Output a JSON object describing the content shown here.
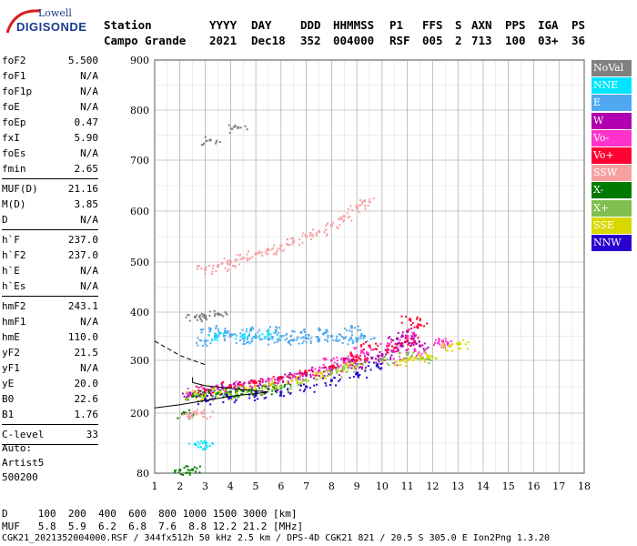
{
  "logo": {
    "line1": "Lowell",
    "line2": "DIGISONDE"
  },
  "header": {
    "row1": [
      {
        "label": "Station",
        "x": 114
      },
      {
        "label": "YYYY",
        "x": 230
      },
      {
        "label": "DAY",
        "x": 276
      },
      {
        "label": "DDD",
        "x": 330
      },
      {
        "label": "HHMMSS",
        "x": 366
      },
      {
        "label": "P1",
        "x": 428
      },
      {
        "label": "FFS",
        "x": 464
      },
      {
        "label": "S",
        "x": 500
      },
      {
        "label": "AXN",
        "x": 518
      },
      {
        "label": "PPS",
        "x": 555
      },
      {
        "label": "IGA",
        "x": 591
      },
      {
        "label": "PS",
        "x": 628
      }
    ],
    "row2": [
      {
        "label": "Campo Grande",
        "x": 114
      },
      {
        "label": "2021",
        "x": 230
      },
      {
        "label": "Dec18",
        "x": 276
      },
      {
        "label": "352",
        "x": 330
      },
      {
        "label": "004000",
        "x": 366
      },
      {
        "label": "RSF",
        "x": 428
      },
      {
        "label": "005",
        "x": 464
      },
      {
        "label": "2",
        "x": 500
      },
      {
        "label": "713",
        "x": 518
      },
      {
        "label": "100",
        "x": 555
      },
      {
        "label": "03+",
        "x": 591
      },
      {
        "label": "36",
        "x": 628
      }
    ]
  },
  "params": [
    {
      "label": "foF2",
      "value": "5.500"
    },
    {
      "label": "foF1",
      "value": "N/A"
    },
    {
      "label": "foF1p",
      "value": "N/A"
    },
    {
      "label": "foE",
      "value": "N/A"
    },
    {
      "label": "foEp",
      "value": "0.47"
    },
    {
      "label": "fxI",
      "value": "5.90"
    },
    {
      "label": "foEs",
      "value": "N/A"
    },
    {
      "label": "fmin",
      "value": "2.65"
    },
    {
      "sep": true
    },
    {
      "label": "MUF(D)",
      "value": "21.16"
    },
    {
      "label": "M(D)",
      "value": "3.85"
    },
    {
      "label": "D",
      "value": "N/A"
    },
    {
      "sep": true
    },
    {
      "label": "h`F",
      "value": "237.0"
    },
    {
      "label": "h`F2",
      "value": "237.0"
    },
    {
      "label": "h`E",
      "value": "N/A"
    },
    {
      "label": "h`Es",
      "value": "N/A"
    },
    {
      "sep": true
    },
    {
      "label": "hmF2",
      "value": "243.1"
    },
    {
      "label": "hmF1",
      "value": "N/A"
    },
    {
      "label": "hmE",
      "value": "110.0"
    },
    {
      "label": "yF2",
      "value": "21.5"
    },
    {
      "label": "yF1",
      "value": "N/A"
    },
    {
      "label": "yE",
      "value": "20.0"
    },
    {
      "label": "B0",
      "value": "22.6"
    },
    {
      "label": "B1",
      "value": "1.76"
    },
    {
      "sep": true
    },
    {
      "label": "C-level",
      "value": "33"
    },
    {
      "sep": true
    }
  ],
  "footer_info": {
    "line1": "Auto:",
    "line2": "Artist5",
    "line3": "500200"
  },
  "bottom": {
    "d_row": "D     100  200  400  600  800 1000 1500 3000 [km]",
    "muf_row": "MUF   5.8  5.9  6.2  6.8  7.6  8.8 12.2 21.2 [MHz]",
    "file_row": "CGK21_2021352004000.RSF / 344fx512h 50 kHz 2.5 km / DPS-4D CGK21 821 / 20.5 S 305.0 E Ion2Png 1.3.20"
  },
  "legend": [
    {
      "label": "NoVal",
      "color": "#808080"
    },
    {
      "label": "NNE",
      "color": "#00e5ff"
    },
    {
      "label": "E",
      "color": "#4fa8f0"
    },
    {
      "label": "W",
      "color": "#b000b0"
    },
    {
      "label": "Vo-",
      "color": "#ff33cc"
    },
    {
      "label": "Vo+",
      "color": "#ff0033"
    },
    {
      "label": "SSW",
      "color": "#f5a0a0"
    },
    {
      "label": "X-",
      "color": "#007a00"
    },
    {
      "label": "X+",
      "color": "#7fbf4f"
    },
    {
      "label": "SSE",
      "color": "#d9d900"
    },
    {
      "label": "NNW",
      "color": "#2a00d0"
    }
  ],
  "chart_data": {
    "type": "scatter",
    "title": "",
    "xlabel": "",
    "ylabel": "",
    "xlim": [
      1,
      18
    ],
    "ylim": [
      80,
      900
    ],
    "x_ticks": [
      1,
      2,
      3,
      4,
      5,
      6,
      7,
      8,
      9,
      10,
      11,
      12,
      13,
      14,
      15,
      16,
      17,
      18
    ],
    "y_ticks": [
      80,
      200,
      300,
      400,
      500,
      600,
      700,
      800,
      900
    ],
    "grid": true,
    "clusters": [
      {
        "name": "E",
        "points": [
          [
            3.4,
            350
          ],
          [
            4,
            352
          ],
          [
            5,
            348
          ],
          [
            6,
            350
          ],
          [
            7,
            346
          ],
          [
            8,
            350
          ],
          [
            9,
            340
          ],
          [
            3,
            340
          ],
          [
            4.5,
            345
          ],
          [
            5.5,
            344
          ],
          [
            6.5,
            342
          ],
          [
            7.5,
            342
          ],
          [
            8.5,
            346
          ],
          [
            9.3,
            350
          ],
          [
            3.8,
            360
          ],
          [
            4.8,
            362
          ],
          [
            5.8,
            362
          ],
          [
            6.8,
            358
          ],
          [
            7.8,
            362
          ],
          [
            8.8,
            368
          ],
          [
            3.2,
            365
          ]
        ]
      },
      {
        "name": "W",
        "points": [
          [
            2.4,
            238
          ],
          [
            3,
            242
          ],
          [
            4,
            250
          ],
          [
            5,
            258
          ],
          [
            6,
            266
          ],
          [
            7,
            272
          ],
          [
            8,
            282
          ],
          [
            9,
            292
          ],
          [
            9.6,
            305
          ],
          [
            10.4,
            320
          ],
          [
            10.8,
            330
          ],
          [
            11.2,
            345
          ],
          [
            11.5,
            330
          ],
          [
            8.5,
            300
          ],
          [
            7.5,
            280
          ],
          [
            6.5,
            270
          ],
          [
            5.5,
            262
          ],
          [
            4.5,
            254
          ],
          [
            3.5,
            246
          ],
          [
            10,
            310
          ],
          [
            11,
            360
          ],
          [
            10.6,
            345
          ]
        ]
      },
      {
        "name": "Vo-",
        "points": [
          [
            2.6,
            240
          ],
          [
            3.5,
            246
          ],
          [
            4.5,
            254
          ],
          [
            5.5,
            262
          ],
          [
            6.5,
            270
          ],
          [
            7.5,
            280
          ],
          [
            8.5,
            296
          ],
          [
            9.2,
            320
          ],
          [
            10.2,
            330
          ],
          [
            11,
            350
          ],
          [
            11.3,
            320
          ],
          [
            12.4,
            340
          ],
          [
            12.6,
            336
          ],
          [
            8,
            300
          ],
          [
            9,
            310
          ],
          [
            10.8,
            300
          ]
        ]
      },
      {
        "name": "Vo+",
        "points": [
          [
            3,
            244
          ],
          [
            4,
            252
          ],
          [
            5,
            258
          ],
          [
            6,
            268
          ],
          [
            7,
            276
          ],
          [
            8,
            288
          ],
          [
            9,
            300
          ],
          [
            10.5,
            326
          ],
          [
            11,
            340
          ],
          [
            11.4,
            370
          ],
          [
            11.1,
            385
          ],
          [
            8.8,
            310
          ],
          [
            9.5,
            330
          ]
        ]
      },
      {
        "name": "X-",
        "points": [
          [
            2.5,
            232
          ],
          [
            3,
            236
          ],
          [
            3.5,
            238
          ],
          [
            4,
            240
          ],
          [
            4.5,
            242
          ],
          [
            5,
            244
          ],
          [
            5.5,
            246
          ],
          [
            6,
            248
          ],
          [
            2,
            86
          ],
          [
            2.5,
            87
          ],
          [
            2.2,
            200
          ]
        ]
      },
      {
        "name": "X+",
        "points": [
          [
            3,
            230
          ],
          [
            4,
            236
          ],
          [
            5,
            242
          ],
          [
            6,
            250
          ],
          [
            7,
            262
          ],
          [
            8,
            276
          ],
          [
            9,
            290
          ],
          [
            10,
            300
          ],
          [
            11,
            312
          ],
          [
            11.6,
            305
          ],
          [
            8.5,
            285
          ]
        ]
      },
      {
        "name": "SSE",
        "points": [
          [
            2.6,
            236
          ],
          [
            3.6,
            240
          ],
          [
            4.6,
            246
          ],
          [
            5.6,
            254
          ],
          [
            6.6,
            264
          ],
          [
            7.6,
            276
          ],
          [
            8.6,
            290
          ],
          [
            10.8,
            300
          ],
          [
            11.3,
            305
          ],
          [
            11.8,
            310
          ],
          [
            12.7,
            330
          ],
          [
            13,
            335
          ]
        ]
      },
      {
        "name": "NNW",
        "points": [
          [
            3,
            226
          ],
          [
            4,
            230
          ],
          [
            5,
            234
          ],
          [
            6,
            240
          ],
          [
            7,
            250
          ],
          [
            8,
            262
          ],
          [
            9,
            276
          ],
          [
            9.8,
            290
          ]
        ]
      },
      {
        "name": "SSW",
        "points": [
          [
            2.3,
            200
          ],
          [
            2.6,
            201
          ],
          [
            2.9,
            200
          ],
          [
            3,
            485
          ],
          [
            3.5,
            492
          ],
          [
            4,
            500
          ],
          [
            4.5,
            508
          ],
          [
            5,
            516
          ],
          [
            5.5,
            524
          ],
          [
            6,
            532
          ],
          [
            6.5,
            540
          ],
          [
            7,
            550
          ],
          [
            7.5,
            560
          ],
          [
            8,
            572
          ],
          [
            8.5,
            590
          ],
          [
            9,
            608
          ],
          [
            9.3,
            620
          ]
        ]
      },
      {
        "name": "NNE",
        "points": [
          [
            2.6,
            138
          ],
          [
            3,
            142
          ],
          [
            3.5,
            350
          ],
          [
            4.5,
            352
          ],
          [
            5.5,
            355
          ]
        ]
      },
      {
        "name": "NoVal",
        "points": [
          [
            2.6,
            390
          ],
          [
            3,
            392
          ],
          [
            3.5,
            396
          ],
          [
            3.2,
            740
          ],
          [
            4.3,
            765
          ]
        ]
      }
    ],
    "traces": [
      {
        "name": "virtual-height-fit",
        "points": [
          [
            1,
            210
          ],
          [
            2,
            216
          ],
          [
            3,
            224
          ],
          [
            4,
            232
          ],
          [
            5,
            237
          ],
          [
            5.5,
            240
          ],
          [
            4.2,
            246
          ],
          [
            3,
            252
          ],
          [
            2.5,
            258
          ],
          [
            2.5,
            268
          ]
        ]
      },
      {
        "name": "o-trace-dashed",
        "points": [
          [
            1,
            340
          ],
          [
            1.5,
            325
          ],
          [
            2,
            310
          ],
          [
            2.5,
            300
          ],
          [
            3,
            292
          ]
        ]
      }
    ]
  }
}
